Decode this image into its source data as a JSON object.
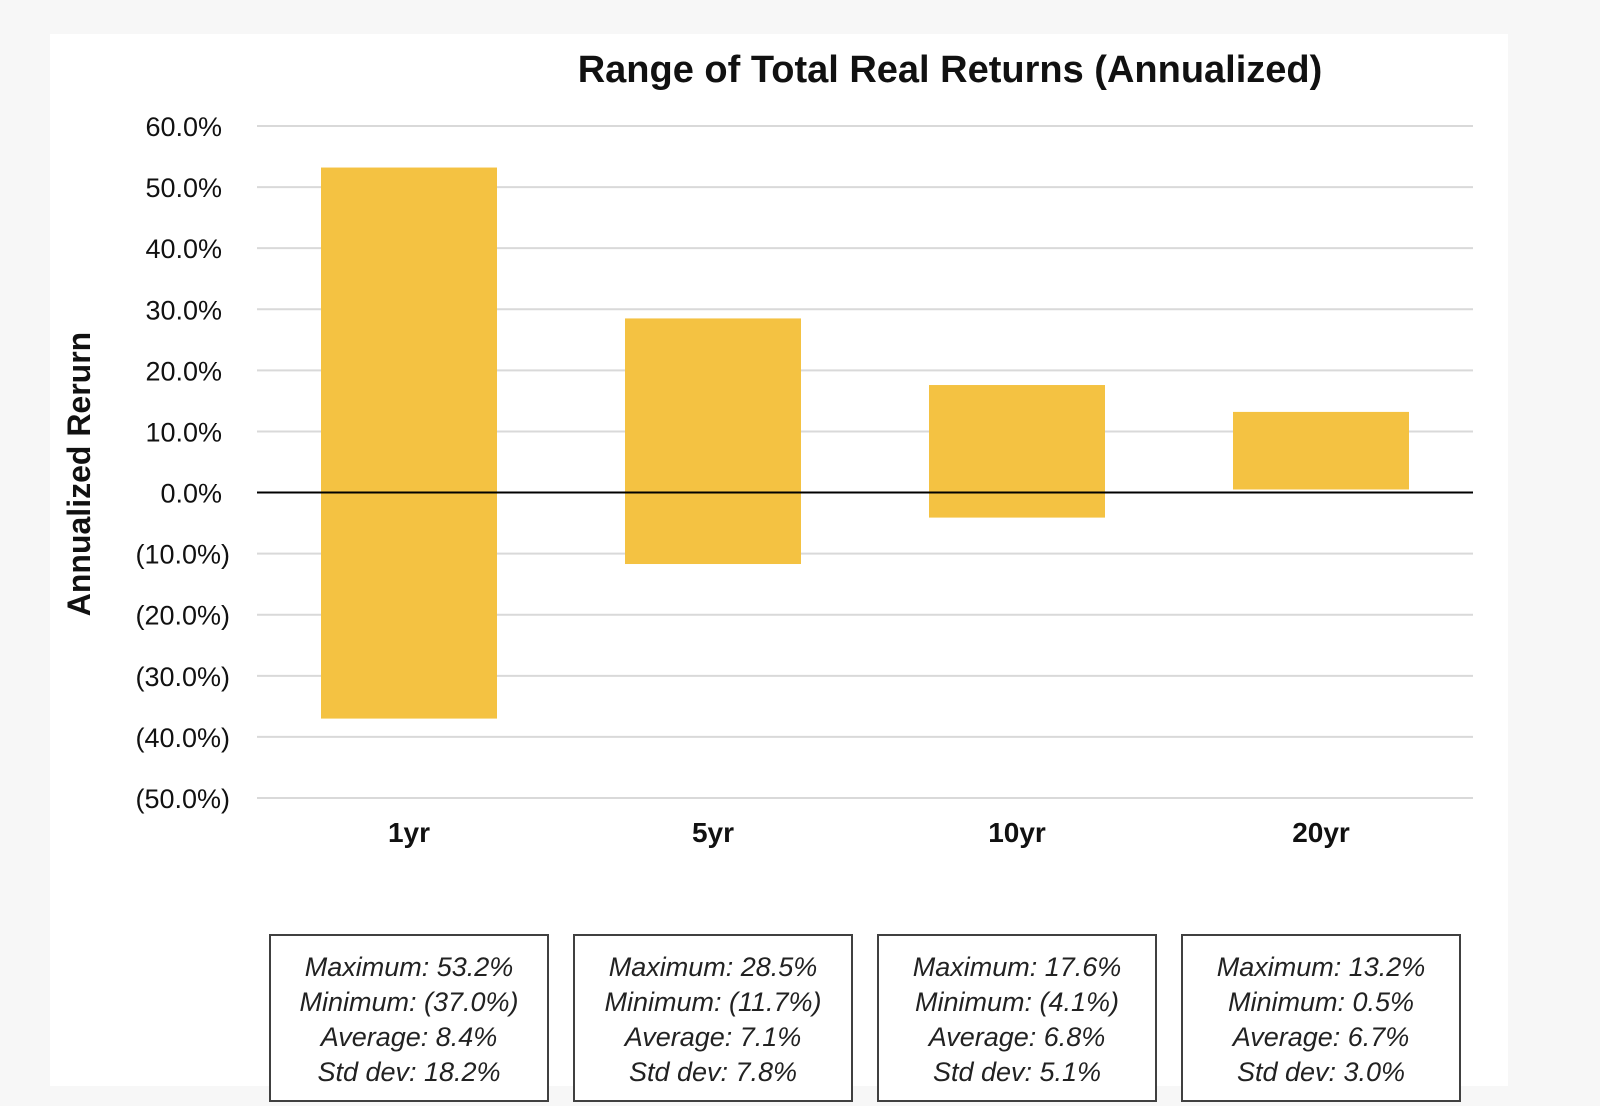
{
  "chart_data": {
    "type": "bar",
    "subtype": "floating-range",
    "title": "Range of Total Real Returns (Annualized)",
    "xlabel": "",
    "ylabel": "Annualized Rerurn",
    "ylim": [
      -50,
      60
    ],
    "y_ticks": [
      60,
      50,
      40,
      30,
      20,
      10,
      0,
      -10,
      -20,
      -30,
      -40,
      -50
    ],
    "y_tick_labels": [
      "60.0%",
      "50.0%",
      "40.0%",
      "30.0%",
      "20.0%",
      "10.0%",
      "0.0%",
      "(10.0%)",
      "(20.0%)",
      "(30.0%)",
      "(40.0%)",
      "(50.0%)"
    ],
    "grid": true,
    "legend": "none",
    "categories": [
      "1yr",
      "5yr",
      "10yr",
      "20yr"
    ],
    "series": [
      {
        "maximum": [
          53.2,
          28.5,
          17.6,
          13.2
        ],
        "minimum": [
          -37.0,
          -11.7,
          -4.1,
          0.5
        ]
      }
    ],
    "annotations": [
      {
        "category": "1yr",
        "lines": [
          "Maximum: 53.2%",
          "Minimum: (37.0%)",
          "Average: 8.4%",
          "Std dev: 18.2%"
        ]
      },
      {
        "category": "5yr",
        "lines": [
          "Maximum: 28.5%",
          "Minimum: (11.7%)",
          "Average: 7.1%",
          "Std dev: 7.8%"
        ]
      },
      {
        "category": "10yr",
        "lines": [
          "Maximum: 17.6%",
          "Minimum: (4.1%)",
          "Average: 6.8%",
          "Std dev: 5.1%"
        ]
      },
      {
        "category": "20yr",
        "lines": [
          "Maximum: 13.2%",
          "Minimum: 0.5%",
          "Average: 6.7%",
          "Std dev: 3.0%"
        ]
      }
    ],
    "colors": {
      "bar": "#f4c242",
      "grid": "#d9d9d9",
      "zero_line": "#000000",
      "text": "#111111"
    }
  }
}
